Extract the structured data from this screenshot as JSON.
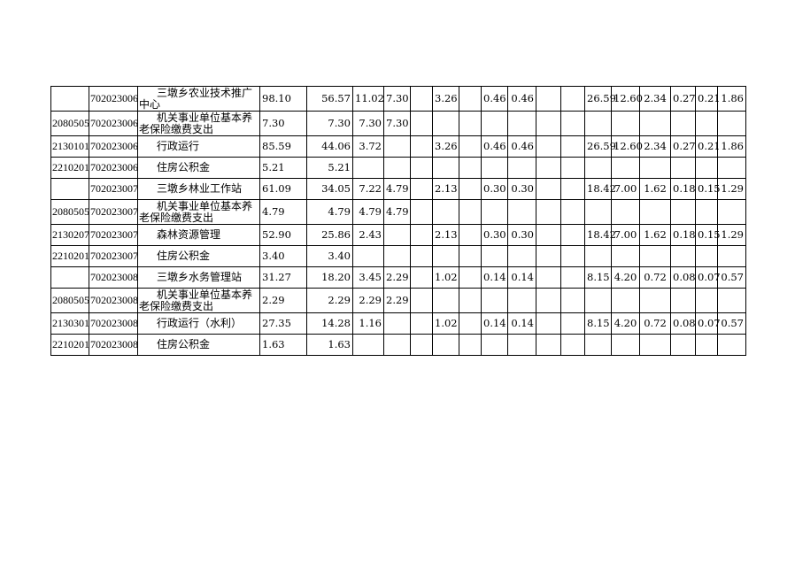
{
  "table": {
    "rows": [
      [
        "",
        "702023006",
        "三墩乡农业技术推广中心",
        "98.10",
        "56.57",
        "11.02",
        "7.30",
        "",
        "3.26",
        "",
        "0.46",
        "0.46",
        "",
        "",
        "26.59",
        "12.60",
        "2.34",
        "0.27",
        "0.21",
        "1.86"
      ],
      [
        "2080505",
        "702023006",
        "机关事业单位基本养老保险缴费支出",
        "7.30",
        "7.30",
        "7.30",
        "7.30",
        "",
        "",
        "",
        "",
        "",
        "",
        "",
        "",
        "",
        "",
        "",
        "",
        ""
      ],
      [
        "2130101",
        "702023006",
        "行政运行",
        "85.59",
        "44.06",
        "3.72",
        "",
        "",
        "3.26",
        "",
        "0.46",
        "0.46",
        "",
        "",
        "26.59",
        "12.60",
        "2.34",
        "0.27",
        "0.21",
        "1.86"
      ],
      [
        "2210201",
        "702023006",
        "住房公积金",
        "5.21",
        "5.21",
        "",
        "",
        "",
        "",
        "",
        "",
        "",
        "",
        "",
        "",
        "",
        "",
        "",
        "",
        ""
      ],
      [
        "",
        "702023007",
        "三墩乡林业工作站",
        "61.09",
        "34.05",
        "7.22",
        "4.79",
        "",
        "2.13",
        "",
        "0.30",
        "0.30",
        "",
        "",
        "18.42",
        "7.00",
        "1.62",
        "0.18",
        "0.15",
        "1.29"
      ],
      [
        "2080505",
        "702023007",
        "机关事业单位基本养老保险缴费支出",
        "4.79",
        "4.79",
        "4.79",
        "4.79",
        "",
        "",
        "",
        "",
        "",
        "",
        "",
        "",
        "",
        "",
        "",
        "",
        ""
      ],
      [
        "2130207",
        "702023007",
        "森林资源管理",
        "52.90",
        "25.86",
        "2.43",
        "",
        "",
        "2.13",
        "",
        "0.30",
        "0.30",
        "",
        "",
        "18.42",
        "7.00",
        "1.62",
        "0.18",
        "0.15",
        "1.29"
      ],
      [
        "2210201",
        "702023007",
        "住房公积金",
        "3.40",
        "3.40",
        "",
        "",
        "",
        "",
        "",
        "",
        "",
        "",
        "",
        "",
        "",
        "",
        "",
        "",
        ""
      ],
      [
        "",
        "702023008",
        "三墩乡水务管理站",
        "31.27",
        "18.20",
        "3.45",
        "2.29",
        "",
        "1.02",
        "",
        "0.14",
        "0.14",
        "",
        "",
        "8.15",
        "4.20",
        "0.72",
        "0.08",
        "0.07",
        "0.57"
      ],
      [
        "2080505",
        "702023008",
        "机关事业单位基本养老保险缴费支出",
        "2.29",
        "2.29",
        "2.29",
        "2.29",
        "",
        "",
        "",
        "",
        "",
        "",
        "",
        "",
        "",
        "",
        "",
        "",
        ""
      ],
      [
        "2130301",
        "702023008",
        "行政运行（水利）",
        "27.35",
        "14.28",
        "1.16",
        "",
        "",
        "1.02",
        "",
        "0.14",
        "0.14",
        "",
        "",
        "8.15",
        "4.20",
        "0.72",
        "0.08",
        "0.07",
        "0.57"
      ],
      [
        "2210201",
        "702023008",
        "住房公积金",
        "1.63",
        "1.63",
        "",
        "",
        "",
        "",
        "",
        "",
        "",
        "",
        "",
        "",
        "",
        "",
        "",
        "",
        ""
      ]
    ]
  }
}
